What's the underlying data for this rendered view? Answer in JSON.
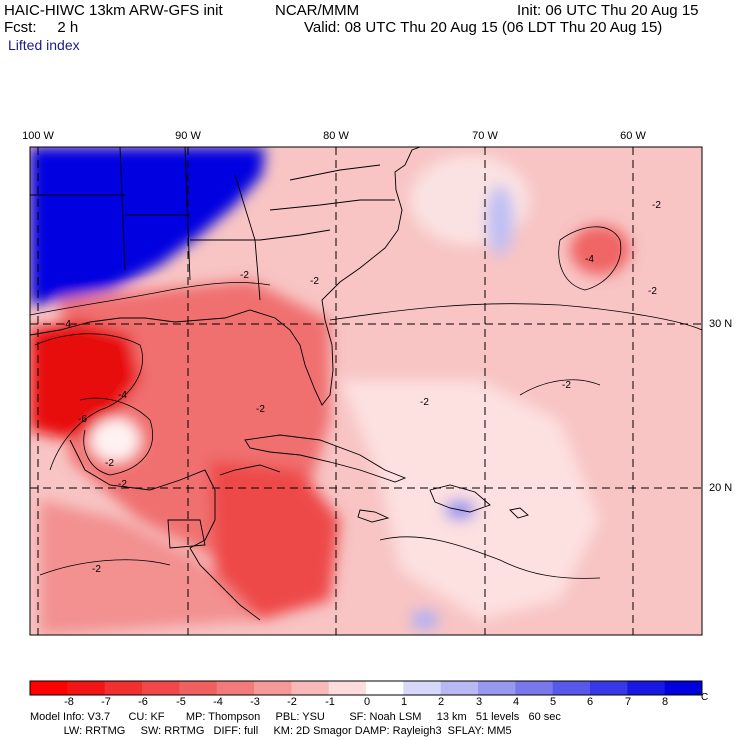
{
  "header": {
    "model": "HAIC-HIWC 13km ARW-GFS init",
    "org": "NCAR/MMM",
    "init": "Init: 06 UTC Thu 20 Aug 15",
    "fcst": "Fcst:     2 h",
    "valid": "Valid: 08 UTC Thu 20 Aug 15 (06 LDT Thu 20 Aug 15)",
    "field": "Lifted index"
  },
  "map": {
    "lon_labels": [
      "100 W",
      "90 W",
      "80 W",
      "70 W",
      "60 W"
    ],
    "lat_labels": [
      "30 N",
      "20 N"
    ],
    "contour_labels": [
      "-2",
      "-2",
      "-2",
      "-2",
      "-2",
      "-2",
      "-2",
      "-2",
      "-2",
      "-2",
      "-4",
      "-4",
      "-4",
      "-6"
    ]
  },
  "colorbar": {
    "ticks": [
      "-8",
      "-7",
      "-6",
      "-5",
      "-4",
      "-3",
      "-2",
      "-1",
      "0",
      "1",
      "2",
      "3",
      "4",
      "5",
      "6",
      "7",
      "8"
    ],
    "unit": "°C",
    "colors": [
      "#ff0000",
      "#f31515",
      "#f23030",
      "#f04848",
      "#f06060",
      "#f37a7a",
      "#f59898",
      "#f8b8b8",
      "#fcdcdc",
      "#ffffff",
      "#d8d8fa",
      "#b8b8f4",
      "#9898f0",
      "#7878ec",
      "#5858ea",
      "#3838e6",
      "#1818e2",
      "#0000dd"
    ]
  },
  "footer": {
    "line1": "Model Info: V3.7      CU: KF       MP: Thompson     PBL: YSU        SF: Noah LSM     13 km   51 levels   60 sec",
    "line2": "           LW: RRTMG     SW: RRTMG   DIFF: full     KM: 2D Smagor DAMP: Rayleigh3  SFLAY: MM5"
  }
}
